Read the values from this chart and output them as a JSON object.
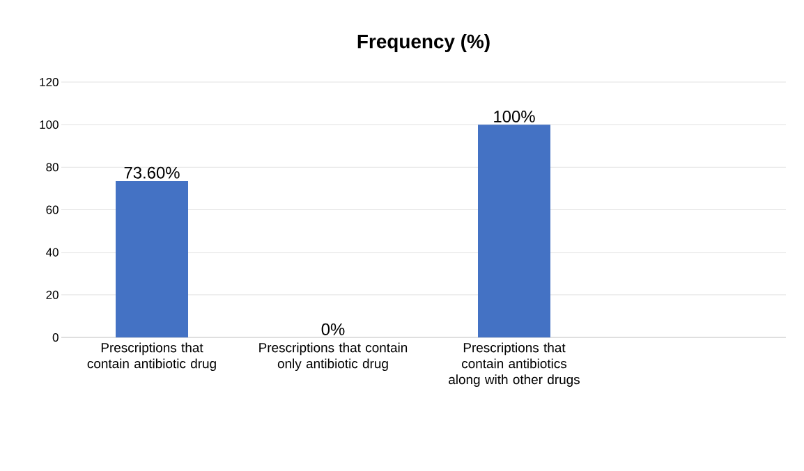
{
  "chart_data": {
    "type": "bar",
    "title": "Frequency (%)",
    "categories": [
      "Prescriptions that contain antibiotic drug",
      "Prescriptions that contain only antibiotic drug",
      "Prescriptions that contain antibiotics along with other drugs",
      null
    ],
    "values": [
      73.6,
      0,
      100,
      null
    ],
    "value_labels": [
      "73.60%",
      "0%",
      "100%",
      null
    ],
    "color": "#4472c4",
    "ylim": [
      0,
      120
    ],
    "yticks": [
      0,
      20,
      40,
      60,
      80,
      100,
      120
    ],
    "grid": "y"
  }
}
